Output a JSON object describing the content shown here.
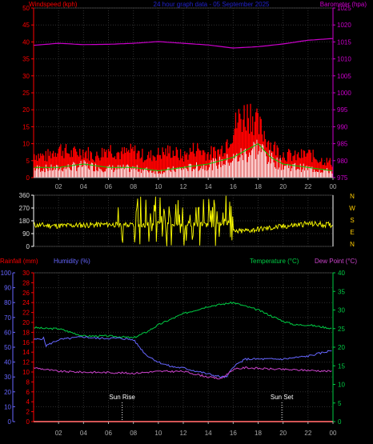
{
  "chart_data": [
    {
      "type": "line",
      "title": "24 hour graph data - 05 September 2025",
      "series_left_label": "Windspeed (kph)",
      "series_right_label": "Barometer (hpa)",
      "y_left": {
        "min": 0,
        "max": 50,
        "ticks": [
          0,
          5,
          10,
          15,
          20,
          25,
          30,
          35,
          40,
          45,
          50
        ]
      },
      "y_right": {
        "min": 975,
        "max": 1025,
        "ticks": [
          975,
          980,
          985,
          990,
          995,
          1000,
          1005,
          1010,
          1015,
          1020,
          1025
        ]
      },
      "x_ticks": [
        "02",
        "04",
        "06",
        "08",
        "10",
        "12",
        "14",
        "16",
        "18",
        "20",
        "22",
        "00"
      ],
      "colors": {
        "gust": "#ff0000",
        "average": "#00cc00",
        "wind_fill": "#ffffff",
        "barometer": "#cc00cc",
        "left_axis": "#ff0000",
        "right_axis": "#cc00cc"
      },
      "series": [
        {
          "name": "Barometer (hpa)",
          "x": [
            0,
            2,
            4,
            6,
            8,
            10,
            12,
            14,
            16,
            18,
            20,
            22,
            24
          ],
          "values": [
            1014,
            1014.6,
            1014.2,
            1014.3,
            1014.6,
            1015.1,
            1014.6,
            1014.1,
            1013.2,
            1013.6,
            1014.4,
            1015.5,
            1016
          ]
        },
        {
          "name": "Gust (kph)",
          "x": [
            0,
            1,
            2,
            3,
            4,
            5,
            6,
            7,
            8,
            9,
            10,
            11,
            12,
            13,
            14,
            15,
            16,
            16.5,
            17,
            17.5,
            18,
            18.5,
            19,
            20,
            21,
            22,
            23,
            24
          ],
          "values": [
            8,
            7,
            10,
            8,
            9,
            7,
            10,
            8,
            9,
            7,
            8,
            9,
            7,
            10,
            8,
            9,
            16,
            20,
            21,
            22,
            17,
            15,
            11,
            8,
            7,
            8,
            6,
            5
          ]
        },
        {
          "name": "Average (kph)",
          "x": [
            0,
            2,
            4,
            6,
            8,
            10,
            12,
            14,
            16,
            17,
            18,
            19,
            20,
            22,
            24
          ],
          "values": [
            3,
            3,
            4,
            3,
            3,
            2,
            3,
            4,
            6,
            8,
            10,
            6,
            4,
            3,
            2
          ]
        }
      ]
    },
    {
      "type": "scatter",
      "y": {
        "min": 0,
        "max": 360,
        "ticks": [
          0,
          90,
          180,
          270,
          360
        ]
      },
      "compass_labels": [
        "N",
        "W",
        "S",
        "E",
        "N"
      ],
      "x_ticks": [],
      "colors": {
        "direction": "#ffff00",
        "axis": "#ffffff",
        "compass": "#ffcc00"
      },
      "series": [
        {
          "name": "Wind direction",
          "x": [
            0,
            2,
            4,
            6,
            8,
            10,
            12,
            14,
            15.5,
            16,
            18,
            20,
            22,
            24
          ],
          "values": [
            150,
            145,
            150,
            155,
            150,
            155,
            160,
            150,
            155,
            100,
            120,
            140,
            160,
            150
          ]
        }
      ]
    },
    {
      "type": "line",
      "series_left_labels": [
        "Rainfall (mm)",
        "Humidity (%)"
      ],
      "series_right_labels": [
        "Temperature (°C)",
        "Dew Point (°C)"
      ],
      "y_humidity": {
        "min": 0,
        "max": 100,
        "ticks": [
          0,
          10,
          20,
          30,
          40,
          50,
          60,
          70,
          80,
          90,
          100
        ]
      },
      "y_rain": {
        "min": 0,
        "max": 30,
        "ticks": [
          0,
          2,
          4,
          6,
          8,
          10,
          12,
          14,
          16,
          18,
          20,
          22,
          24,
          26,
          28,
          30
        ]
      },
      "y_temp": {
        "min": 0,
        "max": 40,
        "ticks": [
          0,
          5,
          10,
          15,
          20,
          25,
          30,
          35,
          40
        ]
      },
      "x_ticks": [
        "02",
        "04",
        "06",
        "08",
        "10",
        "12",
        "14",
        "16",
        "18",
        "20",
        "22",
        "00"
      ],
      "annotations": [
        {
          "text": "Sun Rise",
          "x": 7.1
        },
        {
          "text": "Sun Set",
          "x": 19.9
        }
      ],
      "colors": {
        "temperature": "#00cc44",
        "dewpoint": "#cc44cc",
        "humidity": "#6666ff",
        "rainfall": "#ff0000",
        "humidity_axis": "#6666ff",
        "rain_axis": "#ff0000",
        "temp_axis": "#00cc44"
      },
      "series": [
        {
          "name": "Temperature (°C)",
          "x": [
            0,
            1,
            2,
            3,
            4,
            5,
            6,
            7,
            8,
            9,
            10,
            12,
            14,
            15,
            16,
            17,
            18,
            19,
            20,
            21,
            22,
            23,
            24
          ],
          "values": [
            25.3,
            25,
            25,
            24,
            23,
            23,
            23,
            22.8,
            22.5,
            24,
            26,
            29,
            31,
            31.5,
            32,
            31,
            30,
            28.5,
            27,
            26,
            26,
            25.5,
            25
          ]
        },
        {
          "name": "Humidity (%)",
          "x": [
            0,
            0.8,
            1,
            2,
            3,
            4,
            5,
            6,
            7,
            8,
            9,
            10,
            11,
            12,
            13,
            14,
            15,
            15.5,
            16,
            17,
            18,
            19,
            20,
            21,
            22,
            23,
            24
          ],
          "values": [
            55,
            56,
            51,
            55,
            56,
            57,
            56,
            56,
            56,
            55,
            45,
            40,
            37,
            36,
            34,
            32,
            30,
            30,
            37,
            42,
            42,
            42,
            42,
            43,
            44,
            46,
            48
          ]
        },
        {
          "name": "Dew Point (°C)",
          "x": [
            0,
            2,
            4,
            6,
            8,
            10,
            12,
            14,
            15,
            16,
            17,
            18,
            20,
            22,
            24
          ],
          "values": [
            14.5,
            13.5,
            13.3,
            13.2,
            13,
            13.5,
            13.5,
            12,
            11.5,
            14,
            14.5,
            14.3,
            14,
            13.8,
            13.5
          ]
        },
        {
          "name": "Rainfall (mm)",
          "x": [
            0,
            24
          ],
          "values": [
            0,
            0
          ]
        }
      ]
    }
  ]
}
